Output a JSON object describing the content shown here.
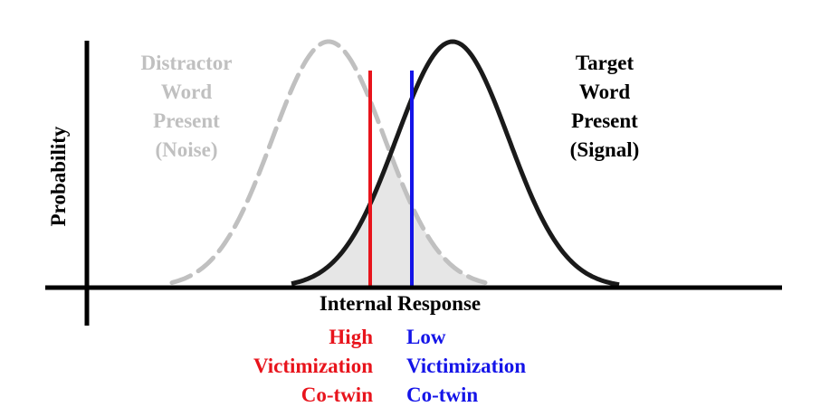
{
  "diagram": {
    "y_axis_label": "Probability",
    "x_axis_label": "Internal Response",
    "noise_label": [
      "Distractor",
      "Word",
      "Present",
      "(Noise)"
    ],
    "signal_label": [
      "Target",
      "Word",
      "Present",
      "(Signal)"
    ],
    "high_criterion_label": [
      "High",
      "Victimization",
      "Co-twin"
    ],
    "low_criterion_label": [
      "Low",
      "Victimization",
      "Co-twin"
    ],
    "colors": {
      "noise": "#c0c0c0",
      "signal": "#1a1a1a",
      "high": "#e8141c",
      "low": "#1414e8",
      "overlap_fill": "#e6e6e6",
      "axis": "#000000"
    }
  }
}
